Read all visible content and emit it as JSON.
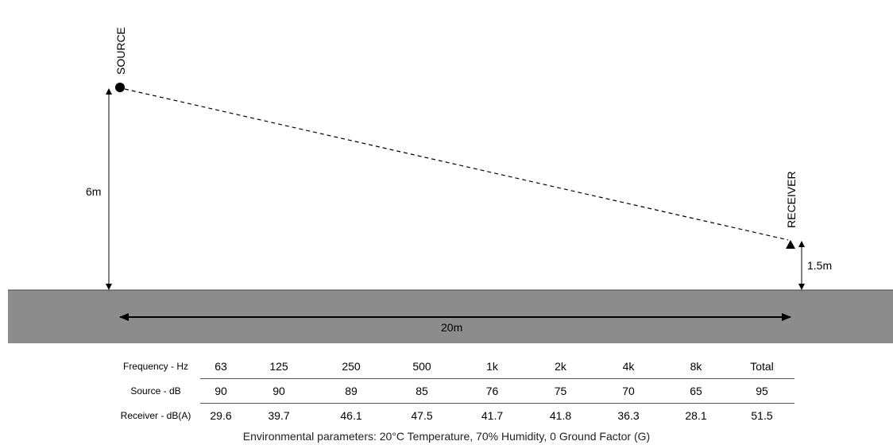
{
  "labels": {
    "source": "SOURCE",
    "receiver": "RECEIVER",
    "source_height": "6m",
    "receiver_height": "1.5m",
    "distance": "20m"
  },
  "colors": {
    "ground": "#8c8c8c",
    "line": "#000000"
  },
  "table": {
    "rows": [
      {
        "label": "Frequency - Hz",
        "cells": [
          "63",
          "125",
          "250",
          "500",
          "1k",
          "2k",
          "4k",
          "8k",
          "Total"
        ]
      },
      {
        "label": "Source - dB",
        "cells": [
          "90",
          "90",
          "89",
          "85",
          "76",
          "75",
          "70",
          "65",
          "95"
        ]
      },
      {
        "label": "Receiver - dB(A)",
        "cells": [
          "29.6",
          "39.7",
          "46.1",
          "47.5",
          "41.7",
          "41.8",
          "36.3",
          "28.1",
          "51.5"
        ]
      }
    ]
  },
  "footnote": "Environmental parameters: 20°C Temperature, 70% Humidity, 0 Ground Factor (G)"
}
